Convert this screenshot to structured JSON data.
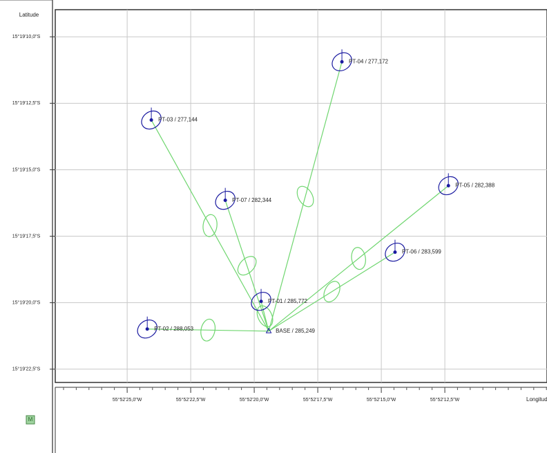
{
  "chart_data": {
    "type": "scatter",
    "y_axis_label": "Latitude",
    "x_axis_label": "Longitud",
    "xlim": [
      27.83,
      8.48
    ],
    "ylim": [
      23.0,
      8.98
    ],
    "xticks": [
      {
        "value": 25.0,
        "label": "55°52'25,0\"W"
      },
      {
        "value": 22.5,
        "label": "55°52'22,5\"W"
      },
      {
        "value": 20.0,
        "label": "55°52'20,0\"W"
      },
      {
        "value": 17.5,
        "label": "55°52'17,5\"W"
      },
      {
        "value": 15.0,
        "label": "55°52'15,0\"W"
      },
      {
        "value": 12.5,
        "label": "55°52'12,5\"W"
      }
    ],
    "yticks": [
      {
        "value": 10.0,
        "label": "15°19'10,0\"S"
      },
      {
        "value": 12.5,
        "label": "15°19'12,5\"S"
      },
      {
        "value": 15.0,
        "label": "15°19'15,0\"S"
      },
      {
        "value": 17.5,
        "label": "15°19'17,5\"S"
      },
      {
        "value": 20.0,
        "label": "15°19'20,0\"S"
      },
      {
        "value": 22.5,
        "label": "15°19'22,5\"S"
      }
    ],
    "grid": true,
    "point_labels": [
      "PT-04 / 277,172",
      "PT-03 / 277,144",
      "PT-07 / 282,344",
      "PT-05 / 282,388",
      "PT-06 / 283,599",
      "PT-01 / 285,772",
      "PT-02 / 288,053",
      "BASE / 285,249"
    ],
    "x": [
      16.55,
      24.05,
      21.14,
      12.36,
      14.46,
      19.73,
      24.21,
      19.43
    ],
    "values": [
      10.94,
      13.13,
      16.15,
      15.6,
      18.1,
      19.95,
      20.99,
      21.07
    ],
    "point_color": "#1a1aa0",
    "vector_color": "#6fd66f"
  }
}
